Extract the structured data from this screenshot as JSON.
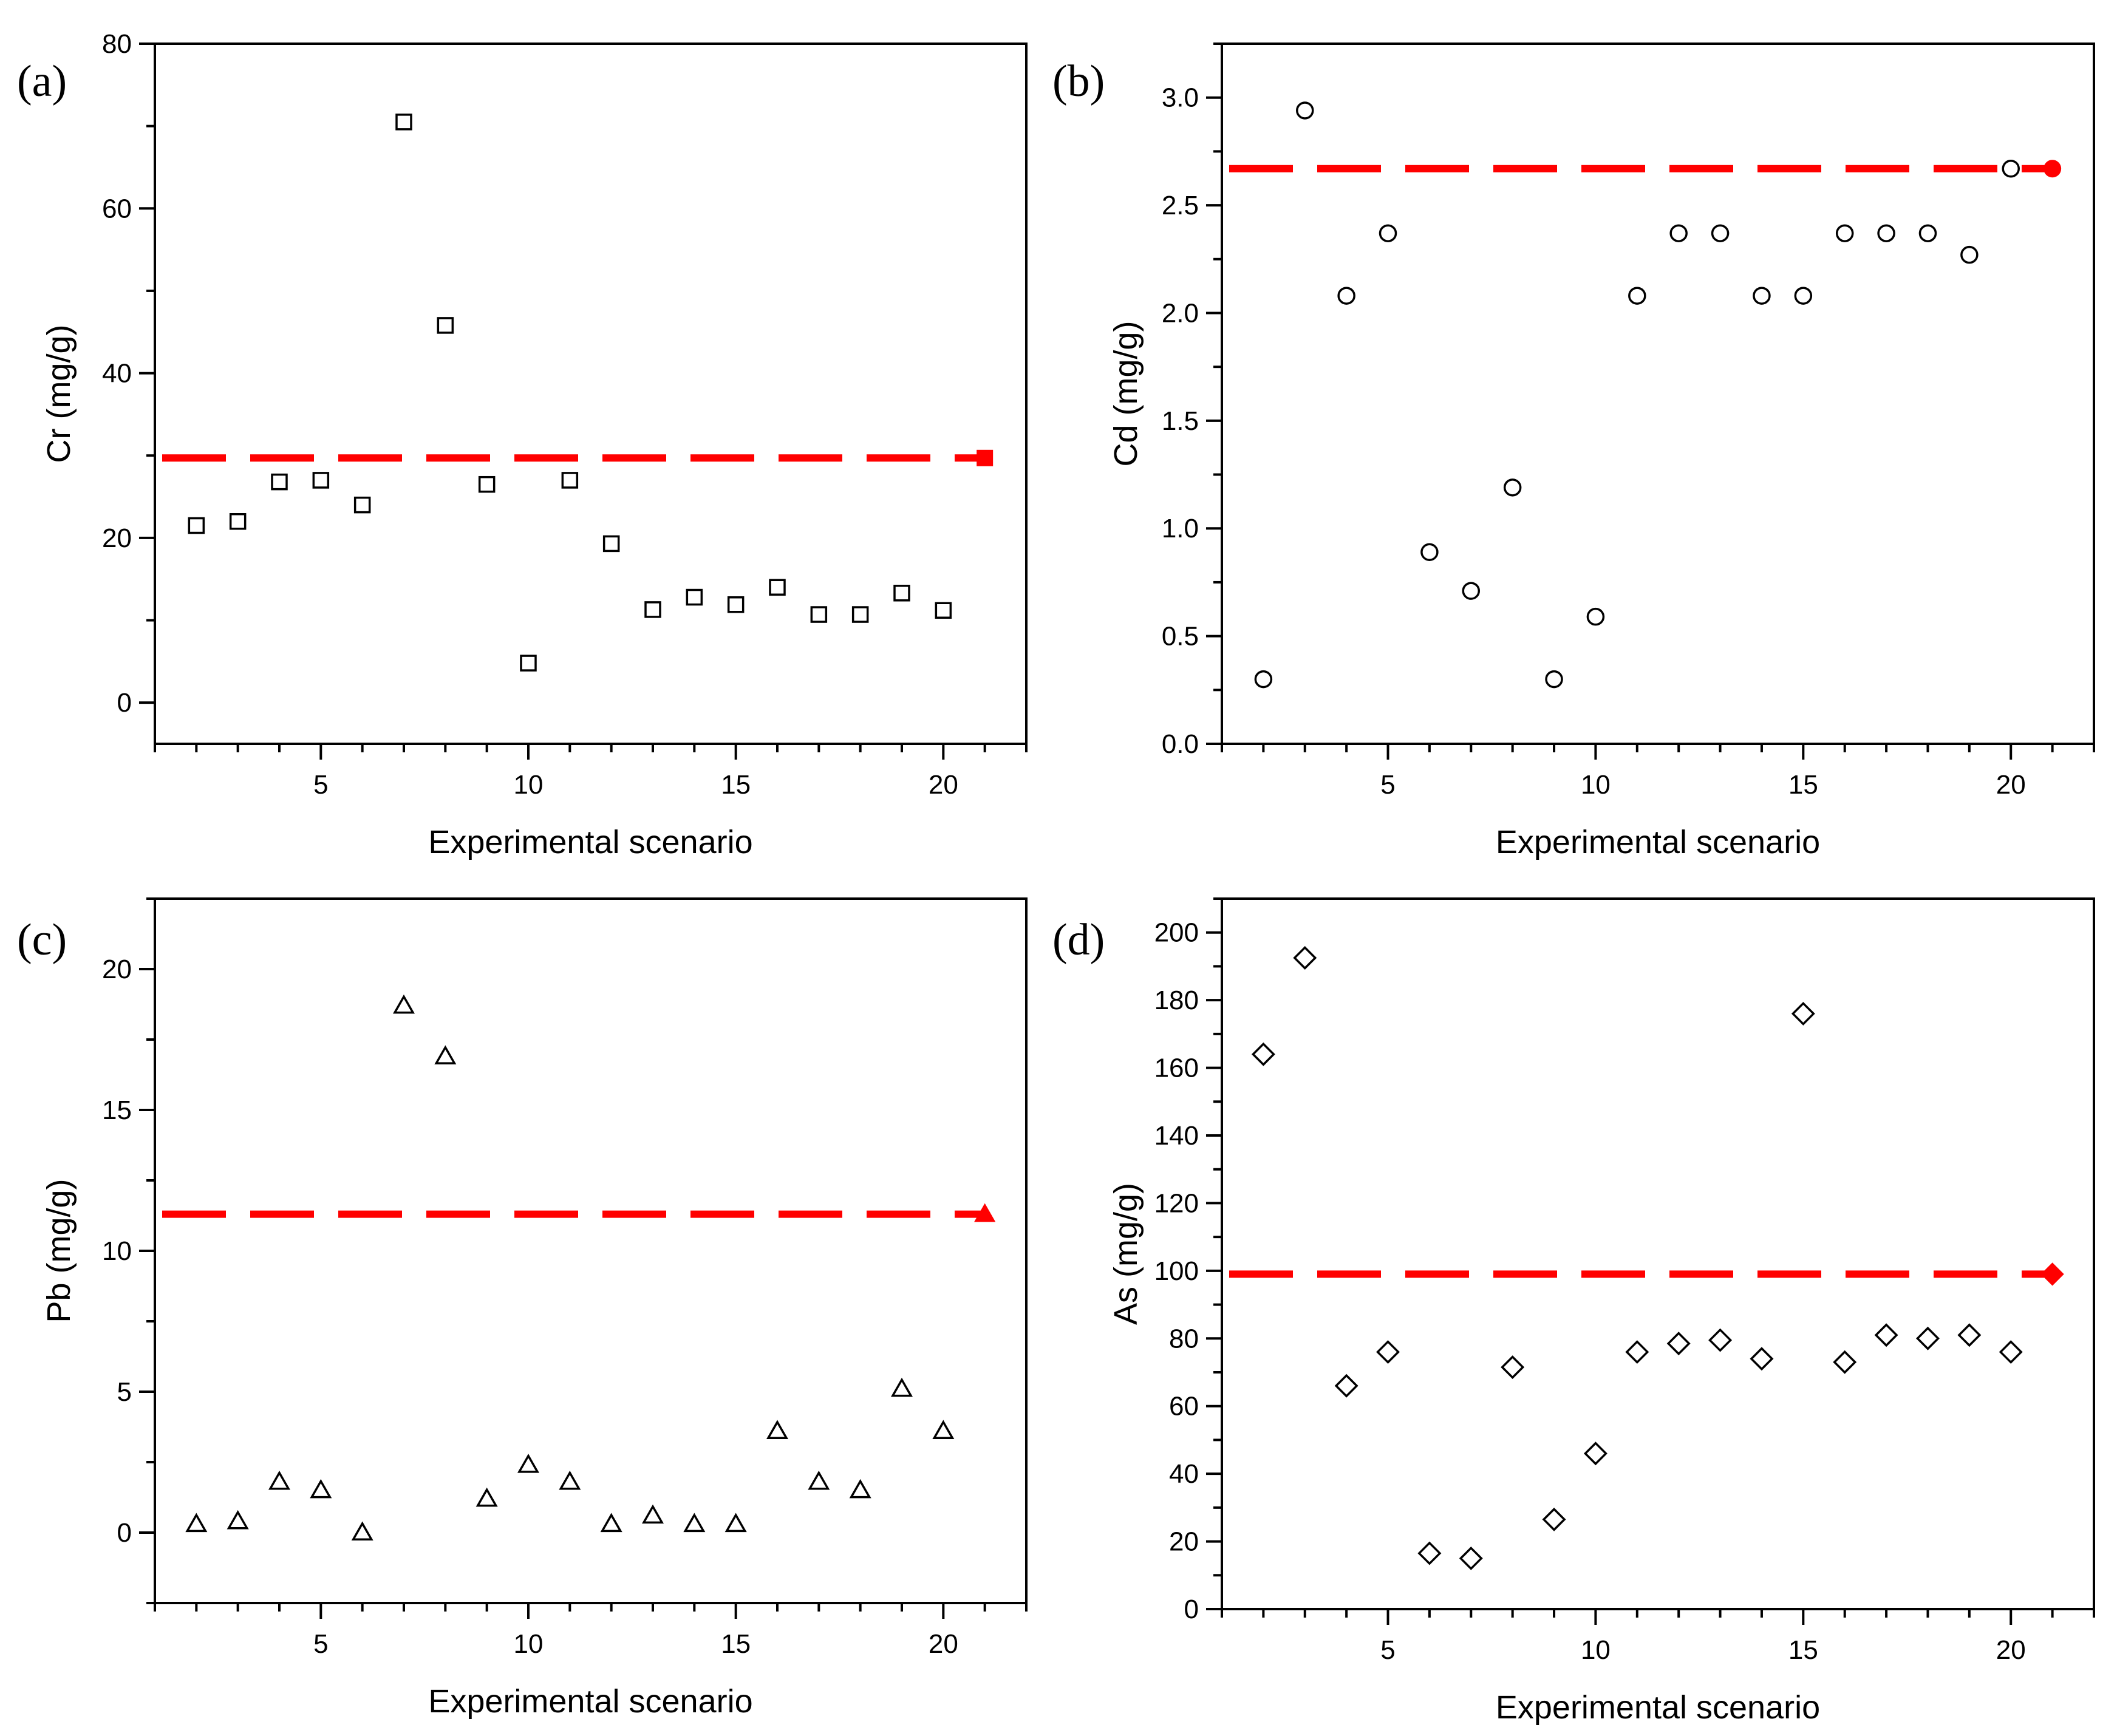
{
  "chart_data": [
    {
      "type": "scatter",
      "panel_label": "(a)",
      "marker": "square",
      "xlabel": "Experimental scenario",
      "ylabel": "Cr (mg/g)",
      "xlim": [
        1,
        22
      ],
      "ylim": [
        -5,
        80
      ],
      "xticks": [
        5,
        10,
        15,
        20
      ],
      "yticks": [
        0,
        20,
        40,
        60,
        80
      ],
      "points": [
        {
          "x": 2,
          "y": 21.5
        },
        {
          "x": 3,
          "y": 22
        },
        {
          "x": 4,
          "y": 26.8
        },
        {
          "x": 5,
          "y": 27
        },
        {
          "x": 6,
          "y": 24
        },
        {
          "x": 7,
          "y": 70.5
        },
        {
          "x": 8,
          "y": 45.8
        },
        {
          "x": 9,
          "y": 26.5
        },
        {
          "x": 10,
          "y": 4.8
        },
        {
          "x": 11,
          "y": 27
        },
        {
          "x": 12,
          "y": 19.3
        },
        {
          "x": 13,
          "y": 11.3
        },
        {
          "x": 14,
          "y": 12.8
        },
        {
          "x": 15,
          "y": 11.9
        },
        {
          "x": 16,
          "y": 14
        },
        {
          "x": 17,
          "y": 10.7
        },
        {
          "x": 18,
          "y": 10.7
        },
        {
          "x": 19,
          "y": 13.3
        },
        {
          "x": 20,
          "y": 11.2
        }
      ],
      "reference": {
        "y": 29.7,
        "marker_x": 21,
        "color": "#ff0000"
      }
    },
    {
      "type": "scatter",
      "panel_label": "(b)",
      "marker": "circle",
      "xlabel": "Experimental scenario",
      "ylabel": "Cd (mg/g)",
      "xlim": [
        1,
        22
      ],
      "ylim": [
        0,
        3.25
      ],
      "xticks": [
        5,
        10,
        15,
        20
      ],
      "yticks": [
        0.0,
        0.5,
        1.0,
        1.5,
        2.0,
        2.5,
        3.0
      ],
      "yticklabels": [
        "0.0",
        "0.5",
        "1.0",
        "1.5",
        "2.0",
        "2.5",
        "3.0"
      ],
      "points": [
        {
          "x": 2,
          "y": 0.3
        },
        {
          "x": 3,
          "y": 2.94
        },
        {
          "x": 4,
          "y": 2.08
        },
        {
          "x": 5,
          "y": 2.37
        },
        {
          "x": 6,
          "y": 0.89
        },
        {
          "x": 7,
          "y": 0.71
        },
        {
          "x": 8,
          "y": 1.19
        },
        {
          "x": 9,
          "y": 0.3
        },
        {
          "x": 10,
          "y": 0.59
        },
        {
          "x": 11,
          "y": 2.08
        },
        {
          "x": 12,
          "y": 2.37
        },
        {
          "x": 13,
          "y": 2.37
        },
        {
          "x": 14,
          "y": 2.08
        },
        {
          "x": 15,
          "y": 2.08
        },
        {
          "x": 16,
          "y": 2.37
        },
        {
          "x": 17,
          "y": 2.37
        },
        {
          "x": 18,
          "y": 2.37
        },
        {
          "x": 19,
          "y": 2.27
        },
        {
          "x": 20,
          "y": 2.67
        }
      ],
      "reference": {
        "y": 2.67,
        "marker_x": 21,
        "color": "#ff0000"
      }
    },
    {
      "type": "scatter",
      "panel_label": "(c)",
      "marker": "triangle",
      "xlabel": "Experimental scenario",
      "ylabel": "Pb (mg/g)",
      "xlim": [
        1,
        22
      ],
      "ylim": [
        -2.5,
        22.5
      ],
      "xticks": [
        5,
        10,
        15,
        20
      ],
      "yticks": [
        0,
        5,
        10,
        15,
        20
      ],
      "points": [
        {
          "x": 2,
          "y": 0.3
        },
        {
          "x": 3,
          "y": 0.4
        },
        {
          "x": 4,
          "y": 1.8
        },
        {
          "x": 5,
          "y": 1.5
        },
        {
          "x": 6,
          "y": 0.0
        },
        {
          "x": 7,
          "y": 18.7
        },
        {
          "x": 8,
          "y": 16.9
        },
        {
          "x": 9,
          "y": 1.2
        },
        {
          "x": 10,
          "y": 2.4
        },
        {
          "x": 11,
          "y": 1.8
        },
        {
          "x": 12,
          "y": 0.3
        },
        {
          "x": 13,
          "y": 0.6
        },
        {
          "x": 14,
          "y": 0.3
        },
        {
          "x": 15,
          "y": 0.3
        },
        {
          "x": 16,
          "y": 3.6
        },
        {
          "x": 17,
          "y": 1.8
        },
        {
          "x": 18,
          "y": 1.5
        },
        {
          "x": 19,
          "y": 5.1
        },
        {
          "x": 20,
          "y": 3.6
        }
      ],
      "reference": {
        "y": 11.3,
        "marker_x": 21,
        "color": "#ff0000"
      }
    },
    {
      "type": "scatter",
      "panel_label": "(d)",
      "marker": "diamond",
      "xlabel": "Experimental scenario",
      "ylabel": "As (mg/g)",
      "xlim": [
        1,
        22
      ],
      "ylim": [
        0,
        210
      ],
      "xticks": [
        5,
        10,
        15,
        20
      ],
      "yticks": [
        0,
        20,
        40,
        60,
        80,
        100,
        120,
        140,
        160,
        180,
        200
      ],
      "points": [
        {
          "x": 2,
          "y": 164
        },
        {
          "x": 3,
          "y": 192.5
        },
        {
          "x": 4,
          "y": 66
        },
        {
          "x": 5,
          "y": 76
        },
        {
          "x": 6,
          "y": 16.5
        },
        {
          "x": 7,
          "y": 15
        },
        {
          "x": 8,
          "y": 71.5
        },
        {
          "x": 9,
          "y": 26.5
        },
        {
          "x": 10,
          "y": 46
        },
        {
          "x": 11,
          "y": 76
        },
        {
          "x": 12,
          "y": 78.5
        },
        {
          "x": 13,
          "y": 79.5
        },
        {
          "x": 14,
          "y": 74
        },
        {
          "x": 15,
          "y": 176
        },
        {
          "x": 16,
          "y": 73
        },
        {
          "x": 17,
          "y": 81
        },
        {
          "x": 18,
          "y": 80
        },
        {
          "x": 19,
          "y": 81
        },
        {
          "x": 20,
          "y": 76
        }
      ],
      "reference": {
        "y": 99,
        "marker_x": 21,
        "color": "#ff0000"
      }
    }
  ]
}
